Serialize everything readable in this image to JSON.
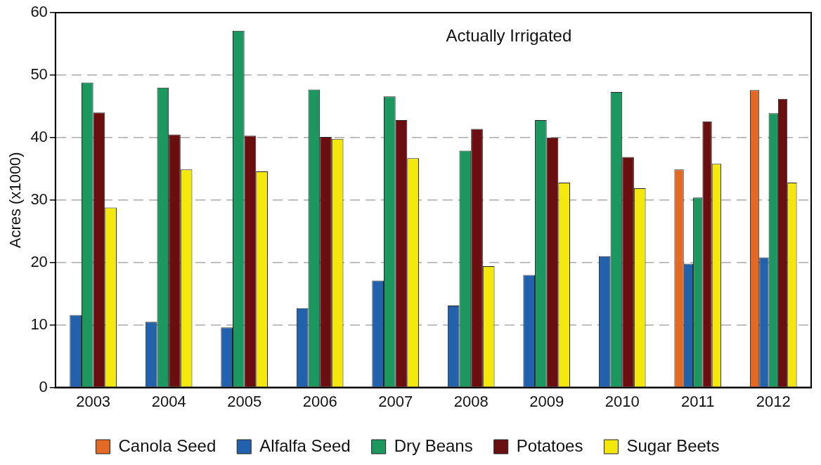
{
  "chart_data": {
    "type": "bar",
    "title": "Actually Irrigated",
    "ylabel": "Acres (x1000)",
    "categories": [
      "2003",
      "2004",
      "2005",
      "2006",
      "2007",
      "2008",
      "2009",
      "2010",
      "2011",
      "2012"
    ],
    "series": [
      {
        "name": "Canola Seed",
        "color": "#e36a25",
        "values": [
          null,
          null,
          null,
          null,
          null,
          null,
          null,
          null,
          34.9,
          47.6
        ]
      },
      {
        "name": "Alfalfa Seed",
        "color": "#2262ad",
        "values": [
          11.6,
          10.5,
          9.6,
          12.7,
          17.1,
          13.1,
          18.0,
          21.0,
          19.8,
          20.8
        ]
      },
      {
        "name": "Dry Beans",
        "color": "#1c9760",
        "values": [
          48.8,
          48.0,
          57.1,
          47.7,
          46.6,
          37.9,
          42.8,
          47.3,
          30.4,
          43.9
        ]
      },
      {
        "name": "Potatoes",
        "color": "#6b0e0f",
        "values": [
          44.0,
          40.5,
          40.3,
          40.1,
          42.8,
          41.4,
          40.0,
          36.9,
          42.6,
          46.2
        ]
      },
      {
        "name": "Sugar Beets",
        "color": "#f4e70b",
        "values": [
          28.8,
          34.9,
          34.6,
          39.8,
          36.7,
          19.4,
          32.8,
          31.9,
          35.8,
          32.8
        ]
      }
    ],
    "ylim": [
      0,
      60
    ],
    "yticks": [
      0,
      10,
      20,
      30,
      40,
      50,
      60
    ],
    "grid": "y",
    "legend": "bottom"
  }
}
